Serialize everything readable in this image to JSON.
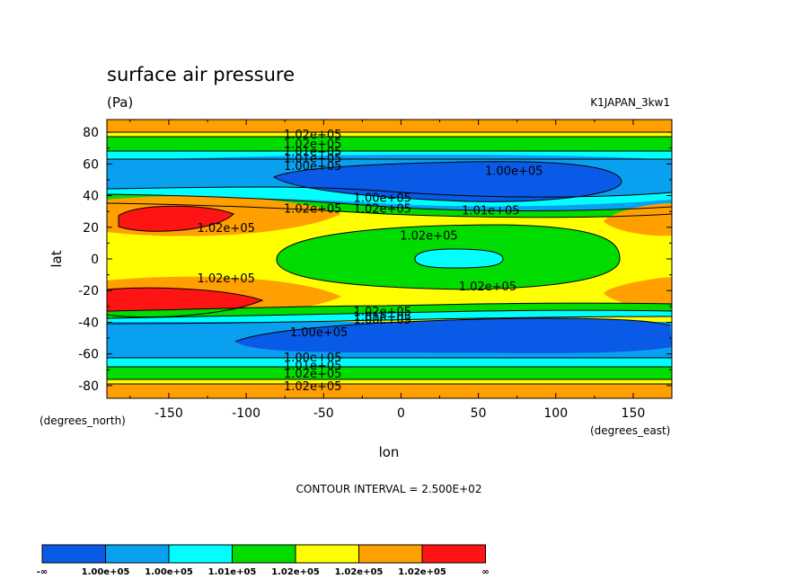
{
  "chart_data": {
    "type": "heatmap",
    "title": "surface air pressure",
    "units": "(Pa)",
    "dataset": "K1JAPAN_3kw1",
    "xlabel": "lon",
    "ylabel": "lat",
    "xunits": "(degrees_east)",
    "yunits": "(degrees_north)",
    "xlim": [
      -190,
      175
    ],
    "ylim": [
      -88,
      88
    ],
    "xticks": [
      "-150",
      "-100",
      "-50",
      "0",
      "50",
      "100",
      "150"
    ],
    "xtick_values": [
      -150,
      -100,
      -50,
      0,
      50,
      100,
      150
    ],
    "yticks": [
      "80",
      "60",
      "40",
      "20",
      "0",
      "-20",
      "-40",
      "-60",
      "-80"
    ],
    "ytick_values": [
      80,
      60,
      40,
      20,
      0,
      -20,
      -40,
      -60,
      -80
    ],
    "contour_interval_text": "CONTOUR INTERVAL = 2.500E+02",
    "contour_labels": [
      {
        "text": "1.02e+05",
        "lon": -57,
        "lat": 79
      },
      {
        "text": "1.02e+05",
        "lon": -57,
        "lat": 73
      },
      {
        "text": "1.01e+05",
        "lon": -57,
        "lat": 68
      },
      {
        "text": "1.01e+05",
        "lon": -57,
        "lat": 64
      },
      {
        "text": "1.00e+05",
        "lon": -57,
        "lat": 59
      },
      {
        "text": "1.00e+05",
        "lon": 73,
        "lat": 56
      },
      {
        "text": "1.00e+05",
        "lon": -12,
        "lat": 39
      },
      {
        "text": "1.02e+05",
        "lon": -57,
        "lat": 32
      },
      {
        "text": "1.02e+05",
        "lon": -12,
        "lat": 32
      },
      {
        "text": "1.01e+05",
        "lon": 58,
        "lat": 31
      },
      {
        "text": "1.02e+05",
        "lon": -113,
        "lat": 20
      },
      {
        "text": "1.02e+05",
        "lon": 18,
        "lat": 15
      },
      {
        "text": "1.02e+05",
        "lon": -113,
        "lat": -12
      },
      {
        "text": "1.02e+05",
        "lon": 56,
        "lat": -17
      },
      {
        "text": "1.02e+05",
        "lon": -12,
        "lat": -33
      },
      {
        "text": "1.01e+05",
        "lon": -12,
        "lat": -36
      },
      {
        "text": "1.00e+05",
        "lon": -12,
        "lat": -38
      },
      {
        "text": "1.00e+05",
        "lon": -53,
        "lat": -46
      },
      {
        "text": "1.00e+05",
        "lon": -57,
        "lat": -62
      },
      {
        "text": "1.01e+05",
        "lon": -57,
        "lat": -67
      },
      {
        "text": "1.02e+05",
        "lon": -57,
        "lat": -72
      },
      {
        "text": "1.02e+05",
        "lon": -57,
        "lat": -80
      }
    ],
    "colorbar": {
      "colors": [
        "#0a5ae8",
        "#0aa0f0",
        "#00ffff",
        "#00dc00",
        "#ffff00",
        "#ffa000",
        "#ff1414"
      ],
      "labels": [
        "-∞",
        "1.00e+05",
        "1.00e+05",
        "1.01e+05",
        "1.02e+05",
        "1.02e+05",
        "1.02e+05",
        "∞"
      ]
    }
  },
  "colors": {
    "blue": "#0a5ae8",
    "lightblue": "#0aa0f0",
    "cyan": "#00ffff",
    "green": "#00dc00",
    "yellow": "#ffff00",
    "orange": "#ffa000",
    "red": "#ff1414"
  }
}
